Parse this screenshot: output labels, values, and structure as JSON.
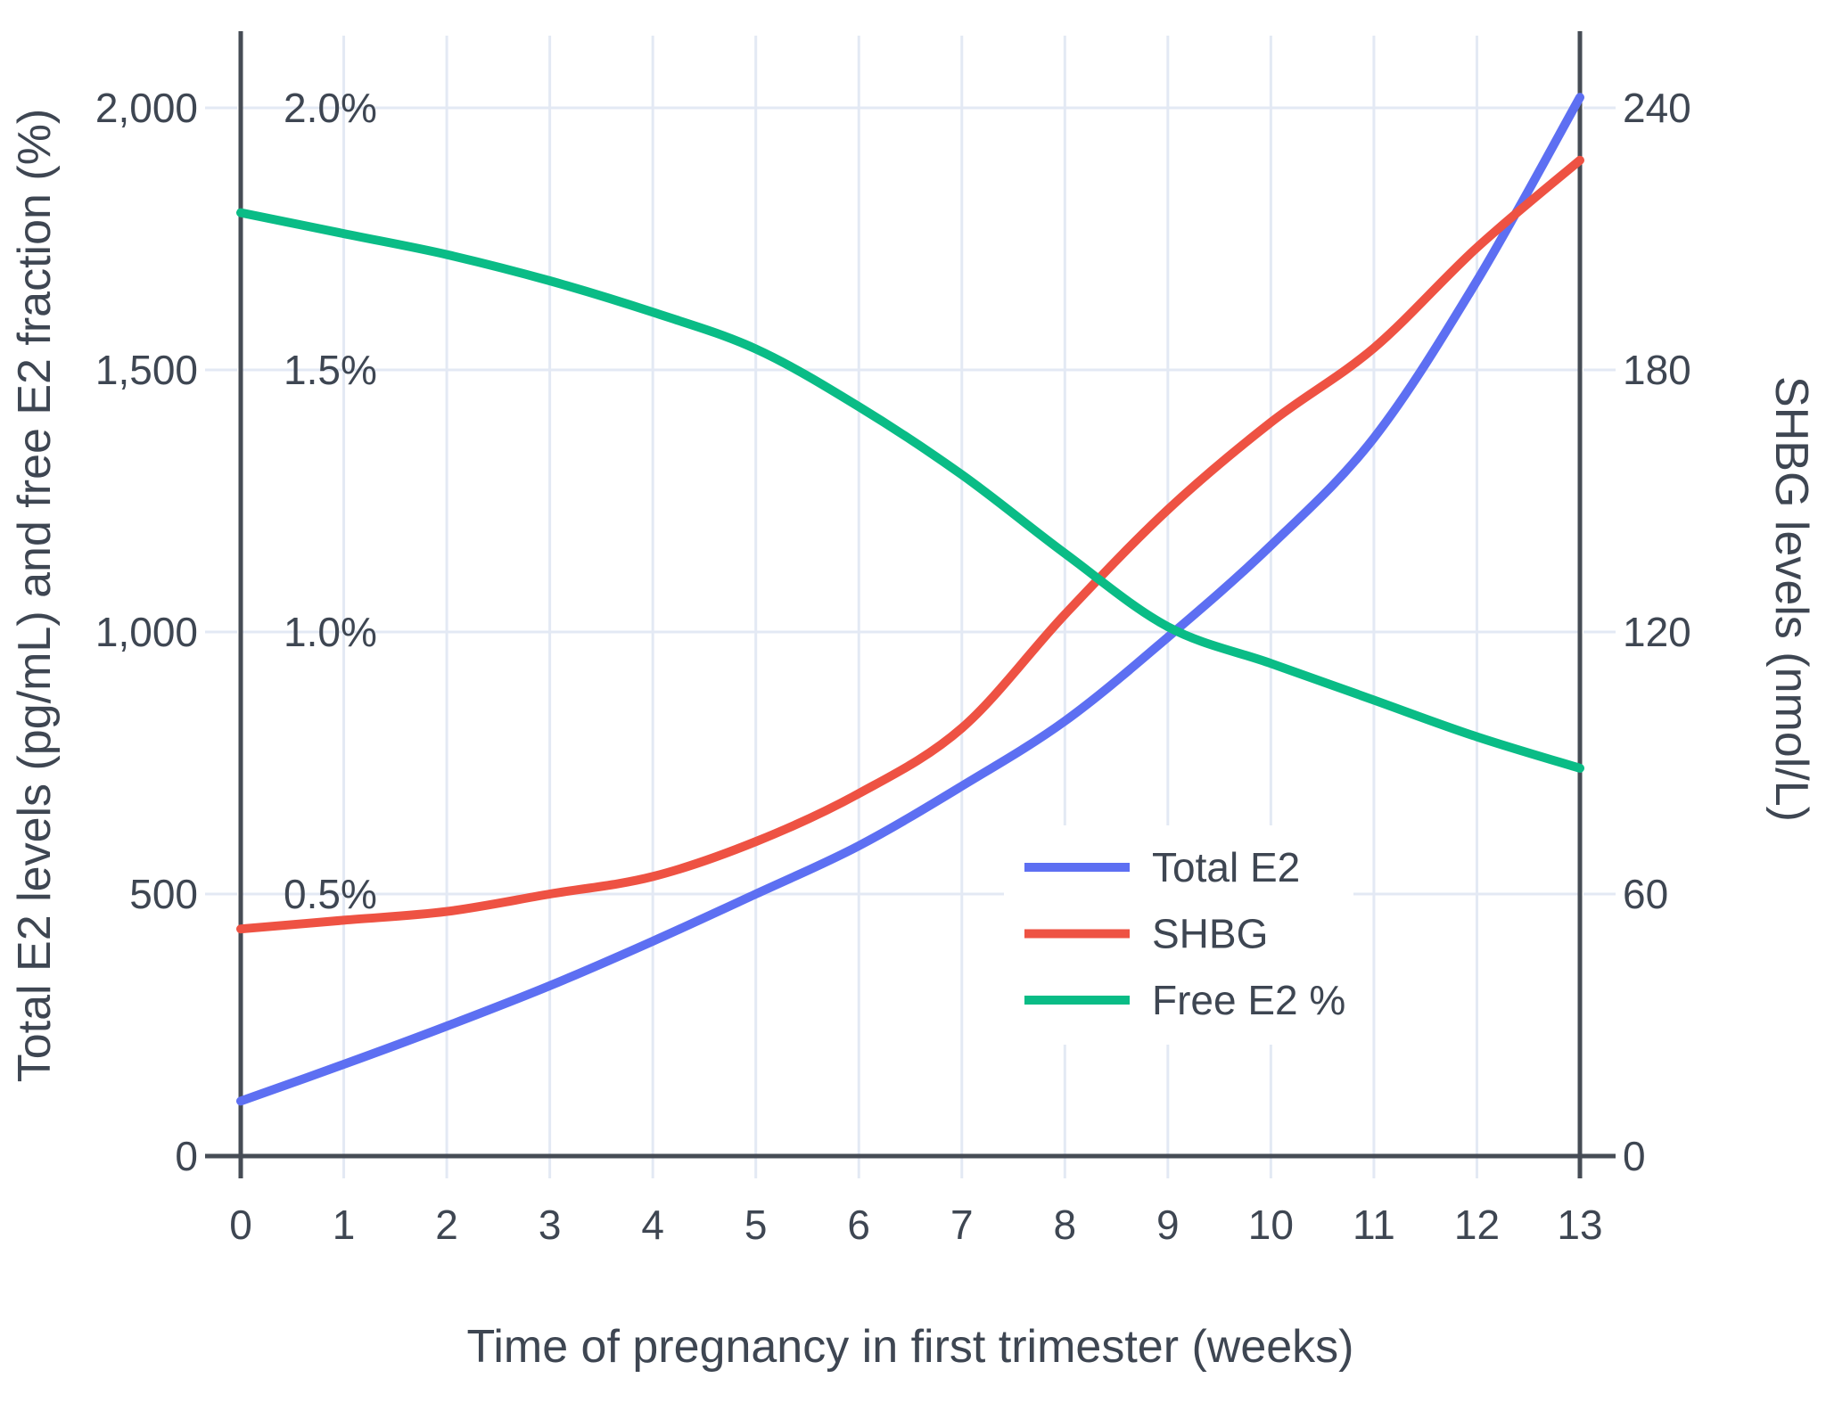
{
  "chart_data": {
    "type": "line",
    "title": "",
    "xlabel": "Time of pregnancy in first trimester (weeks)",
    "ylabel_left": "Total E2 levels (pg/mL) and free E2 fraction (%)",
    "ylabel_right": "SHBG levels (nmol/L)",
    "x": [
      0,
      1,
      2,
      3,
      4,
      5,
      6,
      7,
      8,
      9,
      10,
      11,
      12,
      13
    ],
    "x_tick_labels": [
      "0",
      "1",
      "2",
      "3",
      "4",
      "5",
      "6",
      "7",
      "8",
      "9",
      "10",
      "11",
      "12",
      "13"
    ],
    "left_axis": {
      "range": [
        0,
        2140
      ],
      "ticks": [
        0,
        500,
        1000,
        1500,
        2000
      ],
      "tick_labels": [
        "0",
        "500",
        "1,000",
        "1,500",
        "2,000"
      ],
      "pct_ticks": [
        0.5,
        1.0,
        1.5,
        2.0
      ],
      "pct_tick_labels": [
        "0.5%",
        "1.0%",
        "1.5%",
        "2.0%"
      ]
    },
    "right_axis": {
      "range": [
        0,
        257
      ],
      "ticks": [
        0,
        60,
        120,
        180,
        240
      ],
      "tick_labels": [
        "0",
        "60",
        "120",
        "180",
        "240"
      ]
    },
    "grid": true,
    "legend_position": "inside-right-middle",
    "series": [
      {
        "name": "Total E2",
        "axis": "left",
        "units": "pg/mL",
        "color": "#5d6ff2",
        "values": [
          105,
          175,
          248,
          325,
          410,
          500,
          592,
          706,
          830,
          990,
          1165,
          1370,
          1670,
          2020
        ]
      },
      {
        "name": "SHBG",
        "axis": "right",
        "units": "nmol/L",
        "color": "#ee5243",
        "values": [
          52,
          54,
          56,
          60,
          64,
          72,
          83,
          98,
          124,
          148,
          168,
          185,
          208,
          228
        ]
      },
      {
        "name": "Free E2 %",
        "axis": "left-percent",
        "units": "%",
        "color": "#0abc86",
        "values": [
          1.8,
          1.76,
          1.72,
          1.67,
          1.61,
          1.54,
          1.43,
          1.3,
          1.15,
          1.01,
          0.94,
          0.87,
          0.8,
          0.74
        ]
      }
    ],
    "colors": {
      "grid": "#e3e9f4",
      "axis_line": "#464c55",
      "text": "#3e4652",
      "plot_background": "#ffffff",
      "legend_background": "#ffffff"
    }
  }
}
